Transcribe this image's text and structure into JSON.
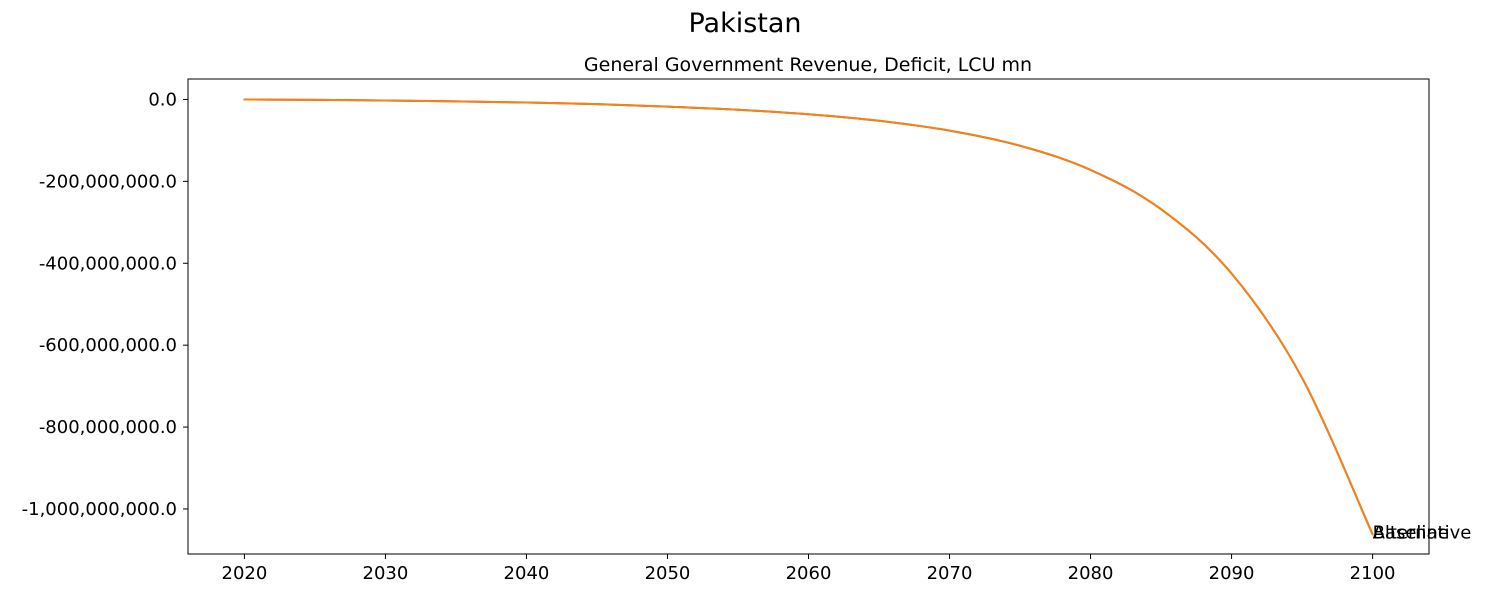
{
  "figure": {
    "suptitle": "Pakistan",
    "title": "General Government Revenue, Deficit, LCU mn"
  },
  "chart_data": {
    "type": "line",
    "title": "General Government Revenue, Deficit, LCU mn",
    "xlabel": "",
    "ylabel": "",
    "xlim": [
      2016,
      2104
    ],
    "ylim": [
      -1110000000,
      50000000
    ],
    "x_ticks": [
      2020,
      2030,
      2040,
      2050,
      2060,
      2070,
      2080,
      2090,
      2100
    ],
    "y_ticks": [
      0,
      -200000000,
      -400000000,
      -600000000,
      -800000000,
      -1000000000
    ],
    "y_tick_labels": [
      "0.0",
      "-200,000,000.0",
      "-400,000,000.0",
      "-600,000,000.0",
      "-800,000,000.0",
      "-1,000,000,000.0"
    ],
    "grid": false,
    "x": [
      2020,
      2025,
      2030,
      2035,
      2040,
      2045,
      2050,
      2055,
      2060,
      2065,
      2070,
      2075,
      2080,
      2085,
      2090,
      2095,
      2100
    ],
    "series": [
      {
        "name": "Baseline",
        "color": "#1f77b4",
        "values": [
          0,
          -1000000,
          -2500000,
          -4500000,
          -7500000,
          -11500000,
          -17500000,
          -25000000,
          -36000000,
          -52000000,
          -76000000,
          -113000000,
          -172000000,
          -268000000,
          -425000000,
          -680000000,
          -1062000000
        ]
      },
      {
        "name": "Alternative",
        "color": "#ff7f0e",
        "values": [
          0,
          -1000000,
          -2500000,
          -4500000,
          -7500000,
          -11500000,
          -17500000,
          -25000000,
          -36000000,
          -52000000,
          -76000000,
          -113000000,
          -172000000,
          -268000000,
          -425000000,
          -680000000,
          -1062000000
        ]
      }
    ]
  }
}
